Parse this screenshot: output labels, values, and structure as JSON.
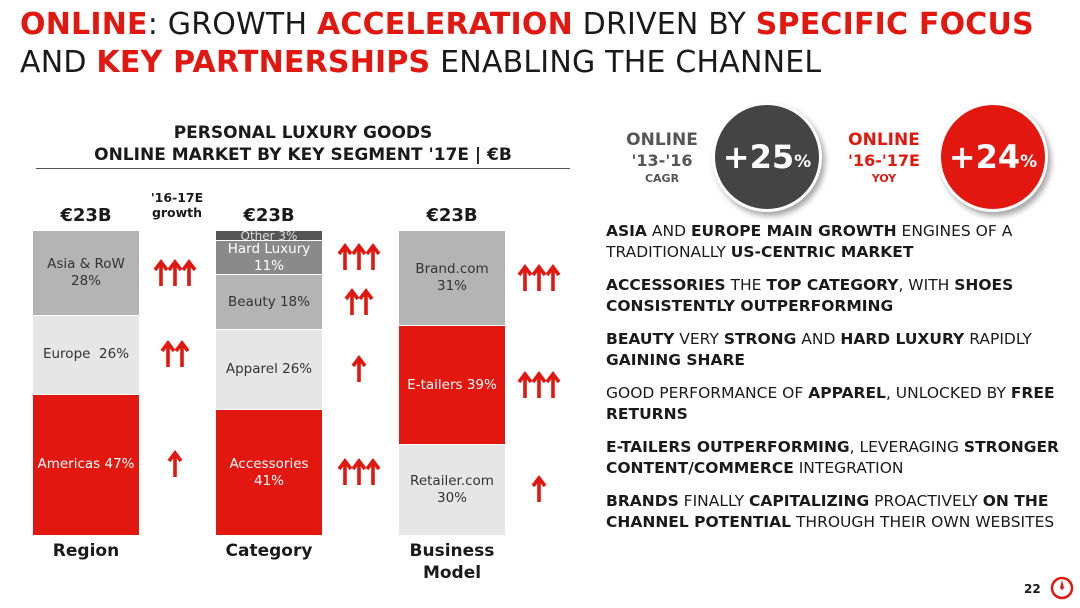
{
  "title": {
    "p1": "ONLINE",
    "p2": ": GROWTH ",
    "p3": "ACCELERATION",
    "p4": " DRIVEN BY ",
    "p5": "SPECIFIC FOCUS",
    "p6": "AND ",
    "p7": "KEY PARTNERSHIPS",
    "p8": " ENABLING THE CHANNEL"
  },
  "chart_data": {
    "type": "bar",
    "stacked": true,
    "title": "PERSONAL LUXURY GOODS",
    "subtitle": "ONLINE MARKET BY KEY SEGMENT '17E | €B",
    "growth_header": "'16-17E growth",
    "bars": [
      {
        "xlabel": "Region",
        "total": "€23B",
        "segments": [
          {
            "label": "Asia & RoW",
            "value": 28,
            "value_label": "28%",
            "color": "#b4b4b4",
            "growth_arrows": 3
          },
          {
            "label": "Europe",
            "value": 26,
            "value_label": "26%",
            "color": "#e6e6e6",
            "growth_arrows": 2
          },
          {
            "label": "Americas",
            "value": 47,
            "value_label": "47%",
            "color": "#e2170f",
            "growth_arrows": 1
          }
        ]
      },
      {
        "xlabel": "Category",
        "total": "€23B",
        "segments": [
          {
            "label": "Other",
            "value": 3,
            "value_label": "3%",
            "color": "#555555",
            "growth_arrows": 0
          },
          {
            "label": "Hard Luxury",
            "value": 11,
            "value_label": "11%",
            "color": "#8a8a8a",
            "growth_arrows": 3
          },
          {
            "label": "Beauty",
            "value": 18,
            "value_label": "18%",
            "color": "#b4b4b4",
            "growth_arrows": 2
          },
          {
            "label": "Apparel",
            "value": 26,
            "value_label": "26%",
            "color": "#e6e6e6",
            "growth_arrows": 1
          },
          {
            "label": "Accessories",
            "value": 41,
            "value_label": "41%",
            "color": "#e2170f",
            "growth_arrows": 3
          }
        ]
      },
      {
        "xlabel": "Business Model",
        "total": "€23B",
        "segments": [
          {
            "label": "Brand.com",
            "value": 31,
            "value_label": "31%",
            "color": "#b4b4b4",
            "growth_arrows": 3
          },
          {
            "label": "E-tailers",
            "value": 39,
            "value_label": "39%",
            "color": "#e2170f",
            "growth_arrows": 3
          },
          {
            "label": "Retailer.com",
            "value": 30,
            "value_label": "30%",
            "color": "#e6e6e6",
            "growth_arrows": 1
          }
        ]
      }
    ]
  },
  "kpis": [
    {
      "line1": "ONLINE",
      "line2": "'13-'16",
      "line3": "CAGR",
      "value": "+25",
      "unit": "%",
      "color": "#444444",
      "label_color": "#555555"
    },
    {
      "line1": "ONLINE",
      "line2": "'16-'17E",
      "line3": "YOY",
      "value": "+24",
      "unit": "%",
      "color": "#e2170f",
      "label_color": "#e2170f"
    }
  ],
  "points": [
    [
      {
        "t": "ASIA",
        "b": true
      },
      {
        "t": " AND ",
        "b": false
      },
      {
        "t": "EUROPE MAIN GROWTH",
        "b": true
      },
      {
        "t": " ENGINES OF A TRADITIONALLY ",
        "b": false
      },
      {
        "t": "US-CENTRIC MARKET",
        "b": true
      }
    ],
    [
      {
        "t": "ACCESSORIES",
        "b": true
      },
      {
        "t": " THE ",
        "b": false
      },
      {
        "t": "TOP CATEGORY",
        "b": true
      },
      {
        "t": ", WITH ",
        "b": false
      },
      {
        "t": "SHOES CONSISTENTLY OUTPERFORMING",
        "b": true
      }
    ],
    [
      {
        "t": "BEAUTY",
        "b": true
      },
      {
        "t": " VERY ",
        "b": false
      },
      {
        "t": "STRONG",
        "b": true
      },
      {
        "t": " AND ",
        "b": false
      },
      {
        "t": "HARD LUXURY",
        "b": true
      },
      {
        "t": " RAPIDLY ",
        "b": false
      },
      {
        "t": "GAINING SHARE",
        "b": true
      }
    ],
    [
      {
        "t": "GOOD PERFORMANCE OF ",
        "b": false
      },
      {
        "t": "APPAREL",
        "b": true
      },
      {
        "t": ", UNLOCKED BY ",
        "b": false
      },
      {
        "t": "FREE RETURNS",
        "b": true
      }
    ],
    [
      {
        "t": "E-TAILERS OUTPERFORMING",
        "b": true
      },
      {
        "t": ", LEVERAGING ",
        "b": false
      },
      {
        "t": "STRONGER CONTENT/COMMERCE",
        "b": true
      },
      {
        "t": " INTEGRATION",
        "b": false
      }
    ],
    [
      {
        "t": "BRANDS",
        "b": true
      },
      {
        "t": " FINALLY ",
        "b": false
      },
      {
        "t": "CAPITALIZING",
        "b": true
      },
      {
        "t": " PROACTIVELY ",
        "b": false
      },
      {
        "t": "ON THE CHANNEL POTENTIAL",
        "b": true
      },
      {
        "t": " THROUGH THEIR OWN WEBSITES",
        "b": false
      }
    ]
  ],
  "page_number": "22",
  "colors": {
    "accent": "#e2170f",
    "arrow": "#e2170f"
  }
}
